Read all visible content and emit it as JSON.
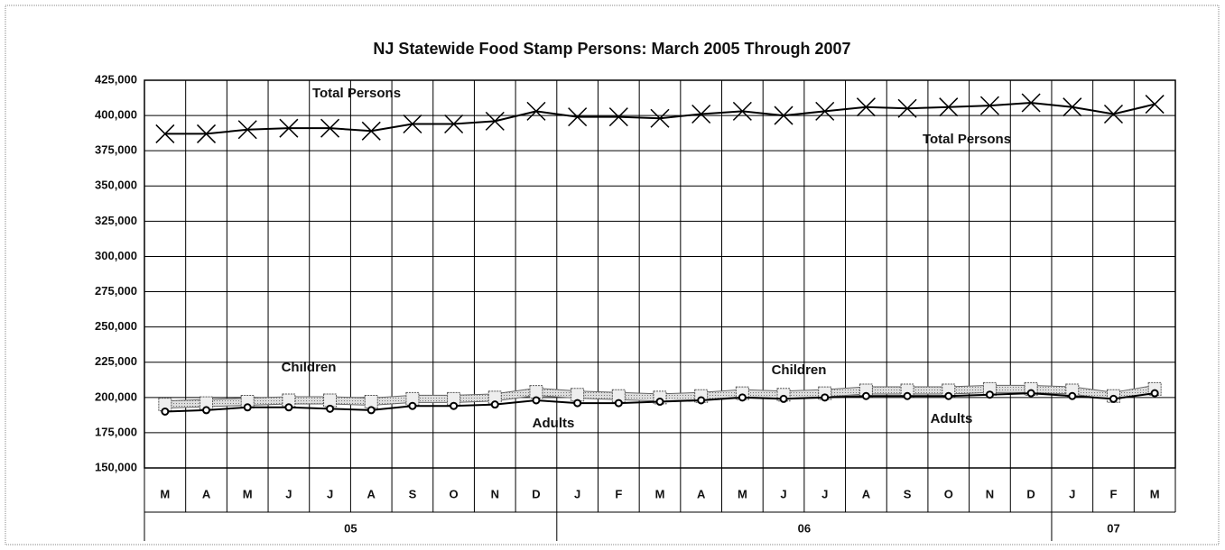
{
  "chart_data": {
    "type": "line",
    "title": "NJ Statewide Food Stamp Persons: March 2005 Through 2007",
    "categories": [
      "M",
      "A",
      "M",
      "J",
      "J",
      "A",
      "S",
      "O",
      "N",
      "D",
      "J",
      "F",
      "M",
      "A",
      "M",
      "J",
      "J",
      "A",
      "S",
      "O",
      "N",
      "D",
      "J",
      "F",
      "M"
    ],
    "year_groups": [
      {
        "label": "05",
        "count": 10
      },
      {
        "label": "06",
        "count": 12
      },
      {
        "label": "07",
        "count": 3
      }
    ],
    "series": [
      {
        "name": "Total Persons",
        "color": "#000000",
        "marker": "x",
        "values": [
          387000,
          387000,
          390000,
          391000,
          391000,
          389000,
          394000,
          394000,
          396000,
          403000,
          399000,
          399000,
          398000,
          401000,
          403000,
          400000,
          403000,
          406000,
          405000,
          406000,
          407000,
          409000,
          406000,
          401000,
          408000
        ]
      },
      {
        "name": "Children",
        "color": "#9a9a9a",
        "marker": "square",
        "values": [
          195000,
          196000,
          197000,
          198000,
          198000,
          197000,
          199000,
          199000,
          200000,
          204000,
          202000,
          201000,
          200000,
          201000,
          203000,
          202000,
          203000,
          205000,
          205000,
          205000,
          206000,
          206000,
          205000,
          201000,
          206000
        ]
      },
      {
        "name": "Adults",
        "color": "#000000",
        "marker": "circle",
        "values": [
          190000,
          191000,
          193000,
          193000,
          192000,
          191000,
          194000,
          194000,
          195000,
          198000,
          196000,
          196000,
          197000,
          198000,
          200000,
          199000,
          200000,
          201000,
          201000,
          201000,
          202000,
          203000,
          201000,
          199000,
          203000
        ]
      }
    ],
    "annotations": [
      "Total Persons",
      "Total Persons",
      "Children",
      "Children",
      "Adults",
      "Adults"
    ],
    "ylim": [
      150000,
      425000
    ],
    "yticks": [
      {
        "value": 150000,
        "label": "150,000"
      },
      {
        "value": 175000,
        "label": "175,000"
      },
      {
        "value": 200000,
        "label": "200,000"
      },
      {
        "value": 225000,
        "label": "225,000"
      },
      {
        "value": 250000,
        "label": "250,000"
      },
      {
        "value": 275000,
        "label": "275,000"
      },
      {
        "value": 300000,
        "label": "300,000"
      },
      {
        "value": 325000,
        "label": "325,000"
      },
      {
        "value": 350000,
        "label": "350,000"
      },
      {
        "value": 375000,
        "label": "375,000"
      },
      {
        "value": 400000,
        "label": "400,000"
      },
      {
        "value": 425000,
        "label": "425,000"
      }
    ],
    "grid": true
  }
}
